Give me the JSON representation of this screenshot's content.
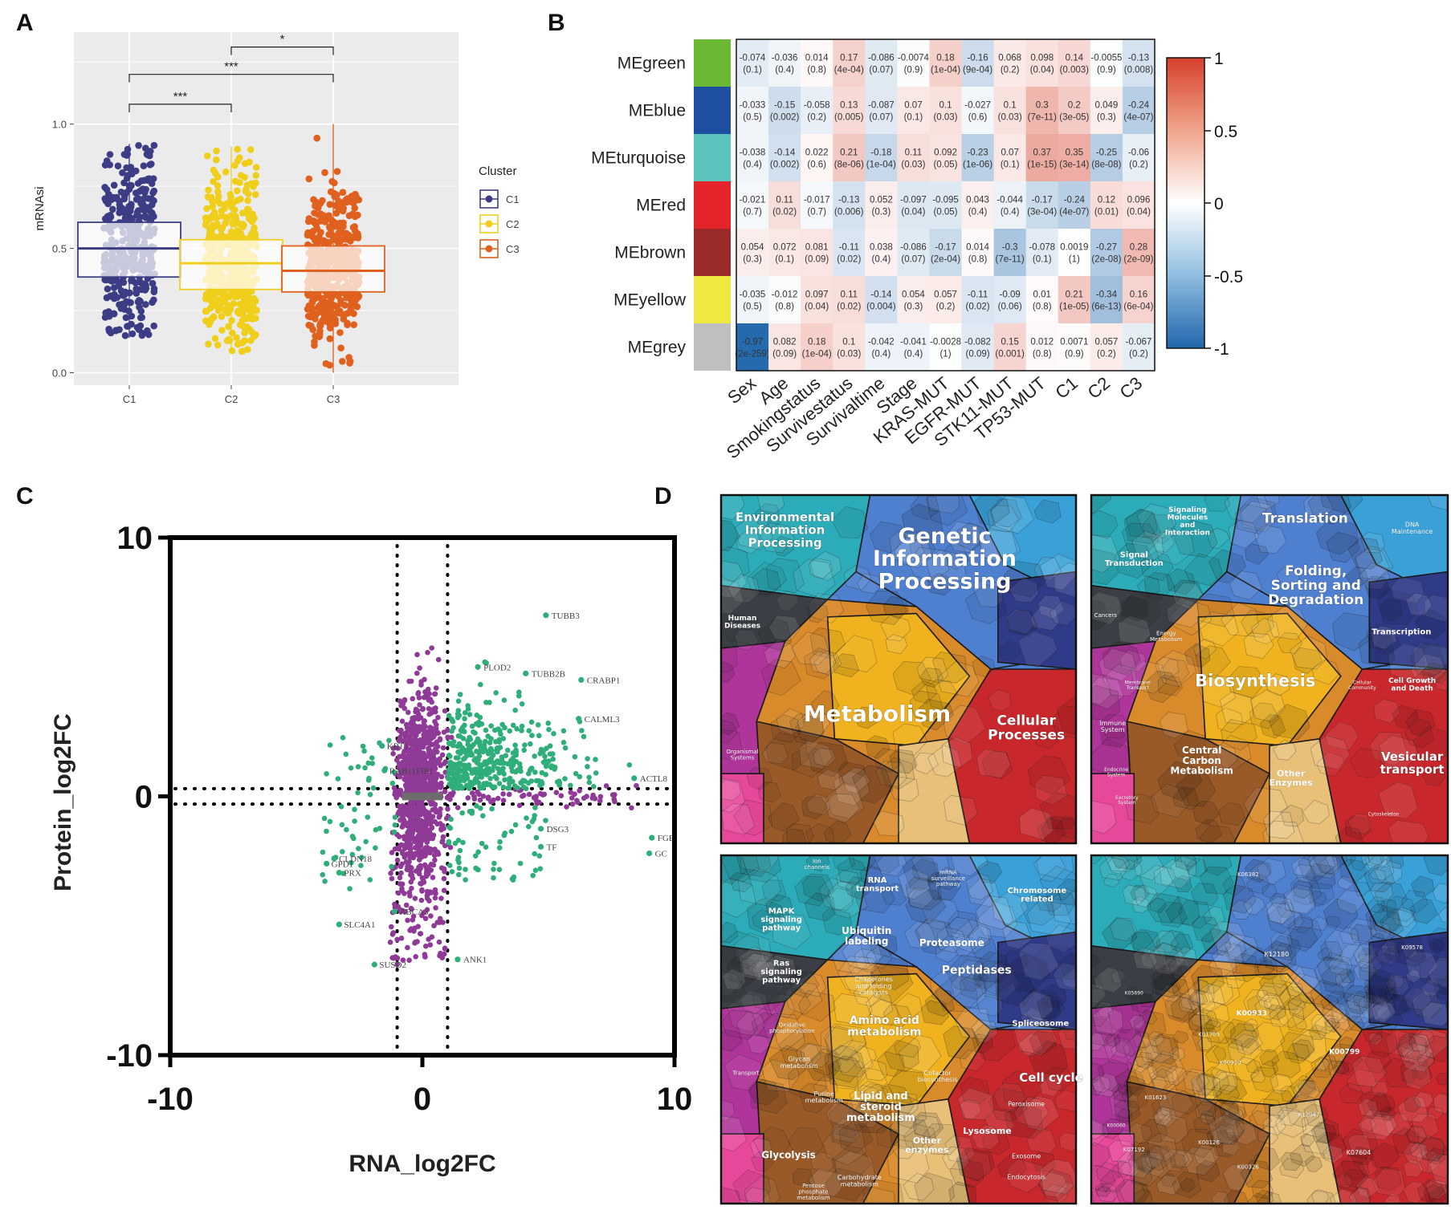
{
  "panels": {
    "a": "A",
    "b": "B",
    "c": "C",
    "d": "D"
  },
  "panel_a": {
    "chart_data": {
      "type": "box",
      "ylabel": "mRNAsi",
      "categories": [
        "C1",
        "C2",
        "C3"
      ],
      "yticks": [
        "0.0",
        "0.5",
        "1.0"
      ],
      "ylim": [
        -0.05,
        1.37
      ],
      "boxes": [
        {
          "name": "C1",
          "q1": 0.385,
          "median": 0.5,
          "q3": 0.605,
          "min": 0.14,
          "max": 0.92,
          "color": "#3d3d85",
          "count": 380
        },
        {
          "name": "C2",
          "q1": 0.335,
          "median": 0.44,
          "q3": 0.535,
          "min": 0.08,
          "max": 0.91,
          "color": "#f0cf1c",
          "count": 480
        },
        {
          "name": "C3",
          "q1": 0.325,
          "median": 0.41,
          "q3": 0.51,
          "min": 0.0,
          "max": 1.0,
          "color": "#e0601e",
          "count": 470
        }
      ],
      "significance": [
        {
          "from": "C2",
          "to": "C3",
          "y": 1.31,
          "label": "*"
        },
        {
          "from": "C1",
          "to": "C3",
          "y": 1.2,
          "label": "***"
        },
        {
          "from": "C1",
          "to": "C2",
          "y": 1.08,
          "label": "***"
        }
      ],
      "legend": {
        "title": "Cluster",
        "items": [
          "C1",
          "C2",
          "C3"
        ]
      }
    }
  },
  "panel_b": {
    "chart_data": {
      "type": "heatmap",
      "rows": [
        "MEgreen",
        "MEblue",
        "MEturquoise",
        "MEred",
        "MEbrown",
        "MEyellow",
        "MEgrey"
      ],
      "row_colors": [
        "#6ab833",
        "#1f4fa0",
        "#5cc4bc",
        "#e3242b",
        "#9b2a2a",
        "#eee840",
        "#bfbfbf"
      ],
      "cols": [
        "Sex",
        "Age",
        "Smokingstatus",
        "Survivestatus",
        "Survivaltime",
        "Stage",
        "KRAS-MUT",
        "EGFR-MUT",
        "STK11-MUT",
        "TP53-MUT",
        "C1",
        "C2",
        "C3"
      ],
      "r": [
        [
          "-0.074",
          "-0.036",
          "0.014",
          "0.17",
          "-0.086",
          "-0.0074",
          "0.18",
          "-0.16",
          "0.068",
          "0.098",
          "0.14",
          "-0.0055",
          "-0.13"
        ],
        [
          "-0.033",
          "-0.15",
          "-0.058",
          "0.13",
          "-0.087",
          "0.07",
          "0.1",
          "-0.027",
          "0.1",
          "0.3",
          "0.2",
          "0.049",
          "-0.24"
        ],
        [
          "-0.038",
          "-0.14",
          "0.022",
          "0.21",
          "-0.18",
          "0.11",
          "0.092",
          "-0.23",
          "0.07",
          "0.37",
          "0.35",
          "-0.25",
          "-0.06"
        ],
        [
          "-0.021",
          "0.11",
          "-0.017",
          "-0.13",
          "0.052",
          "-0.097",
          "-0.095",
          "0.043",
          "-0.044",
          "-0.17",
          "-0.24",
          "0.12",
          "0.096"
        ],
        [
          "0.054",
          "0.072",
          "0.081",
          "-0.11",
          "0.038",
          "-0.086",
          "-0.17",
          "0.014",
          "-0.3",
          "-0.078",
          "0.0019",
          "-0.27",
          "0.28"
        ],
        [
          "-0.035",
          "-0.012",
          "0.097",
          "0.11",
          "-0.14",
          "0.054",
          "0.057",
          "-0.11",
          "-0.09",
          "0.01",
          "0.21",
          "-0.34",
          "0.16"
        ],
        [
          "-0.97",
          "0.082",
          "0.18",
          "0.1",
          "-0.042",
          "-0.041",
          "-0.0028",
          "-0.082",
          "0.15",
          "0.012",
          "0.0071",
          "0.057",
          "-0.067"
        ]
      ],
      "p": [
        [
          "(0.1)",
          "(0.4)",
          "(0.8)",
          "(4e-04)",
          "(0.07)",
          "(0.9)",
          "(1e-04)",
          "(9e-04)",
          "(0.2)",
          "(0.04)",
          "(0.003)",
          "(0.9)",
          "(0.008)"
        ],
        [
          "(0.5)",
          "(0.002)",
          "(0.2)",
          "(0.005)",
          "(0.07)",
          "(0.1)",
          "(0.03)",
          "(0.6)",
          "(0.03)",
          "(7e-11)",
          "(3e-05)",
          "(0.3)",
          "(4e-07)"
        ],
        [
          "(0.4)",
          "(0.002)",
          "(0.6)",
          "(8e-06)",
          "(1e-04)",
          "(0.03)",
          "(0.05)",
          "(1e-06)",
          "(0.1)",
          "(1e-15)",
          "(3e-14)",
          "(8e-08)",
          "(0.2)"
        ],
        [
          "(0.7)",
          "(0.02)",
          "(0.7)",
          "(0.006)",
          "(0.3)",
          "(0.04)",
          "(0.05)",
          "(0.4)",
          "(0.4)",
          "(3e-04)",
          "(4e-07)",
          "(0.01)",
          "(0.04)"
        ],
        [
          "(0.3)",
          "(0.1)",
          "(0.09)",
          "(0.02)",
          "(0.4)",
          "(0.07)",
          "(2e-04)",
          "(0.8)",
          "(7e-11)",
          "(0.1)",
          "(1)",
          "(2e-08)",
          "(2e-09)"
        ],
        [
          "(0.5)",
          "(0.8)",
          "(0.04)",
          "(0.02)",
          "(0.004)",
          "(0.3)",
          "(0.2)",
          "(0.02)",
          "(0.06)",
          "(0.8)",
          "(1e-05)",
          "(6e-13)",
          "(6e-04)"
        ],
        [
          "(2e-259)",
          "(0.09)",
          "(1e-04)",
          "(0.03)",
          "(0.4)",
          "(0.4)",
          "(1)",
          "(0.09)",
          "(0.001)",
          "(0.8)",
          "(0.9)",
          "(0.2)",
          "(0.2)"
        ]
      ],
      "colorbar": {
        "ticks": [
          "1",
          "0.5",
          "0",
          "-0.5",
          "-1"
        ],
        "low": "#2166ac",
        "mid": "#ffffff",
        "high": "#d6402c"
      }
    }
  },
  "panel_c": {
    "chart_data": {
      "type": "scatter",
      "xlabel": "RNA_log2FC",
      "ylabel": "Protein_log2FC",
      "xlim": [
        -10,
        10
      ],
      "ylim": [
        -10,
        10
      ],
      "xticks": [
        "-10",
        "0",
        "10"
      ],
      "yticks": [
        "10",
        "0",
        "-10"
      ],
      "threshold_lines": {
        "x": [
          -1,
          1
        ],
        "y": [
          -0.3,
          0.3
        ]
      },
      "series": [
        {
          "name": "both",
          "color": "#2fae7a"
        },
        {
          "name": "protein-only",
          "color": "#8e3a96"
        }
      ],
      "labeled_points": [
        {
          "label": "TUBB3",
          "x": 4.9,
          "y": 7.0
        },
        {
          "label": "PLOD2",
          "x": 2.2,
          "y": 5.0
        },
        {
          "label": "TUBB2B",
          "x": 4.1,
          "y": 4.75
        },
        {
          "label": "CRABP1",
          "x": 6.3,
          "y": 4.5
        },
        {
          "label": "CALML3",
          "x": 6.2,
          "y": 3.0
        },
        {
          "label": "KRT1",
          "x": -1.6,
          "y": 1.95
        },
        {
          "label": "RAB11FIP1",
          "x": -1.5,
          "y": 1.0
        },
        {
          "label": "ACTL8",
          "x": 8.4,
          "y": 0.7
        },
        {
          "label": "DSG3",
          "x": 4.7,
          "y": -1.25
        },
        {
          "label": "TF",
          "x": 4.7,
          "y": -1.95
        },
        {
          "label": "FGB",
          "x": 9.1,
          "y": -1.6
        },
        {
          "label": "GC",
          "x": 9.0,
          "y": -2.2
        },
        {
          "label": "CLDN18",
          "x": -3.5,
          "y": -2.4
        },
        {
          "label": "GPD1",
          "x": -3.8,
          "y": -2.6
        },
        {
          "label": "PRX",
          "x": -3.3,
          "y": -2.95
        },
        {
          "label": "ABCA3",
          "x": -1.1,
          "y": -4.45
        },
        {
          "label": "SLC4A1",
          "x": -3.3,
          "y": -4.95
        },
        {
          "label": "ANK1",
          "x": 1.4,
          "y": -6.3
        },
        {
          "label": "SUSD2",
          "x": -1.9,
          "y": -6.5
        }
      ]
    }
  },
  "panel_d": {
    "quadrants": [
      {
        "labels": [
          "Environmental Information Processing",
          "Genetic Information Processing",
          "Human Diseases",
          "Metabolism",
          "Cellular Processes",
          "Organismal Systems"
        ]
      },
      {
        "labels": [
          "Signaling Molecules and Interaction",
          "Translation",
          "DNA Maintenance",
          "Signal Transduction",
          "Folding, Sorting and Degradation",
          "Cancers",
          "Energy Metabolism",
          "Transcription",
          "Membrane Transport",
          "Biosynthesis",
          "Cellular Community",
          "Cell Growth and Death",
          "Immune System",
          "Central Carbon Metabolism",
          "Vesicular transport",
          "Endocrine System",
          "Other Enzymes",
          "Excretory System",
          "Cytoskeleton"
        ]
      },
      {
        "labels": [
          "Ion channels",
          "RNA transport",
          "mRNA surveillance pathway",
          "Chromosome related",
          "MAPK signaling pathway",
          "Proteasome",
          "Ubiquitin labeling",
          "Peptidases",
          "Ras signaling pathway",
          "Chaperones and folding catalysts",
          "Spliceosome",
          "Oxidative phosphorylation",
          "Amino acid metabolism",
          "Glycan metabolism",
          "Purine metabolism",
          "Cofactor biosynthesis",
          "Cell cycle",
          "Transport",
          "Lipid and steroid metabolism",
          "Peroxisome",
          "Glycolysis",
          "Lysosome",
          "Carbohydrate metabolism",
          "Other enzymes",
          "Exosome",
          "Endocytosis",
          "Pentose phosphate metabolism"
        ]
      },
      {
        "labels": [
          "K06382",
          "K09578",
          "K12180",
          "K00933",
          "K01709",
          "K00799",
          "K05690",
          "K00920",
          "K01623",
          "K12047",
          "K07604",
          "K00126",
          "K07192",
          "K00326",
          "K00060"
        ]
      }
    ]
  }
}
